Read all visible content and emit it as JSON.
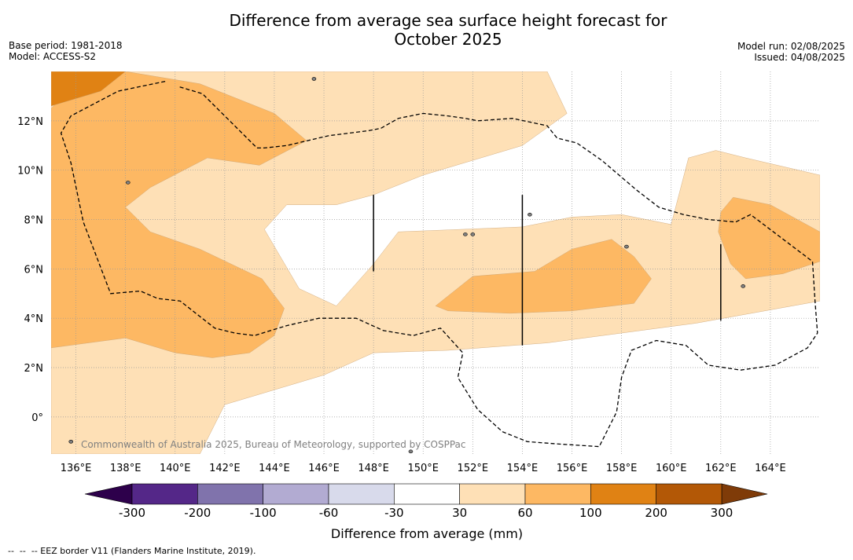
{
  "title_line1": "Difference from average sea surface height forecast for",
  "title_line2": "October 2025",
  "meta_left": {
    "base_period": "Base period: 1981-2018",
    "model": "Model: ACCESS-S2"
  },
  "meta_right": {
    "model_run": "Model run: 02/08/2025",
    "issued": "Issued: 04/08/2025"
  },
  "copyright": "Commonwealth of Australia 2025, Bureau of Meteorology, supported by COSPPac",
  "footnote": "--  --  -- EEZ border V11 (Flanders Marine Institute, 2019).",
  "chart_data": {
    "type": "heatmap",
    "xlim": [
      135,
      166
    ],
    "ylim": [
      -1.5,
      14
    ],
    "x_ticks": [
      {
        "value": 136,
        "label": "136°E"
      },
      {
        "value": 138,
        "label": "138°E"
      },
      {
        "value": 140,
        "label": "140°E"
      },
      {
        "value": 142,
        "label": "142°E"
      },
      {
        "value": 144,
        "label": "144°E"
      },
      {
        "value": 146,
        "label": "146°E"
      },
      {
        "value": 148,
        "label": "148°E"
      },
      {
        "value": 150,
        "label": "150°E"
      },
      {
        "value": 152,
        "label": "152°E"
      },
      {
        "value": 154,
        "label": "154°E"
      },
      {
        "value": 156,
        "label": "156°E"
      },
      {
        "value": 158,
        "label": "158°E"
      },
      {
        "value": 160,
        "label": "160°E"
      },
      {
        "value": 162,
        "label": "162°E"
      },
      {
        "value": 164,
        "label": "164°E"
      }
    ],
    "y_ticks": [
      {
        "value": 0,
        "label": "0°"
      },
      {
        "value": 2,
        "label": "2°N"
      },
      {
        "value": 4,
        "label": "4°N"
      },
      {
        "value": 6,
        "label": "6°N"
      },
      {
        "value": 8,
        "label": "8°N"
      },
      {
        "value": 10,
        "label": "10°N"
      },
      {
        "value": 12,
        "label": "12°N"
      }
    ],
    "grid": true,
    "colorbar": {
      "label": "Difference from average (mm)",
      "tick_labels": [
        "-300",
        "-200",
        "-100",
        "-60",
        "-30",
        "30",
        "60",
        "100",
        "200",
        "300"
      ],
      "colors": [
        "#542788",
        "#8073ac",
        "#b2abd2",
        "#d8daeb",
        "#ffffff",
        "#fee0b6",
        "#fdb863",
        "#e08214",
        "#b35806"
      ],
      "extend_low_color": "#2d004b",
      "extend_high_color": "#7f3b08"
    },
    "regions": [
      {
        "level": "30 to 60",
        "color": "#fee0b6",
        "points": [
          [
            135,
            14
          ],
          [
            155,
            14
          ],
          [
            155.8,
            12.3
          ],
          [
            154,
            11
          ],
          [
            150,
            9.8
          ],
          [
            148,
            9.0
          ],
          [
            146.5,
            8.6
          ],
          [
            144.5,
            8.6
          ],
          [
            143.6,
            7.6
          ],
          [
            145,
            5.2
          ],
          [
            146.5,
            4.5
          ],
          [
            148,
            6.2
          ],
          [
            149,
            7.5
          ],
          [
            151.5,
            7.6
          ],
          [
            154,
            7.7
          ],
          [
            156,
            8.1
          ],
          [
            158,
            8.2
          ],
          [
            160,
            7.8
          ],
          [
            160.7,
            10.5
          ],
          [
            161.8,
            10.8
          ],
          [
            163,
            10.5
          ],
          [
            166,
            9.8
          ],
          [
            166,
            4.7
          ],
          [
            161,
            3.8
          ],
          [
            155,
            3.0
          ],
          [
            151,
            2.7
          ],
          [
            148,
            2.6
          ],
          [
            146,
            1.7
          ],
          [
            142,
            0.5
          ],
          [
            141,
            -1.5
          ],
          [
            135,
            -1.5
          ]
        ]
      },
      {
        "level": "60 to 100",
        "color": "#fdb863",
        "points": [
          [
            135,
            12.5
          ],
          [
            135,
            2.8
          ],
          [
            138,
            3.2
          ],
          [
            140,
            2.6
          ],
          [
            141.5,
            2.4
          ],
          [
            143,
            2.6
          ],
          [
            144,
            3.3
          ],
          [
            144.4,
            4.4
          ],
          [
            143.5,
            5.6
          ],
          [
            141,
            6.8
          ],
          [
            139,
            7.5
          ],
          [
            138,
            8.5
          ],
          [
            139,
            9.3
          ],
          [
            141.3,
            10.5
          ],
          [
            143.4,
            10.2
          ],
          [
            145.3,
            11.2
          ],
          [
            144,
            12.3
          ],
          [
            141,
            13.5
          ],
          [
            138,
            14
          ],
          [
            136.5,
            14
          ]
        ]
      },
      {
        "level": "60 to 100",
        "color": "#fdb863",
        "points": [
          [
            150.5,
            4.5
          ],
          [
            152,
            5.7
          ],
          [
            154.5,
            5.9
          ],
          [
            156,
            6.8
          ],
          [
            157.6,
            7.2
          ],
          [
            158.5,
            6.5
          ],
          [
            159.2,
            5.6
          ],
          [
            158.5,
            4.6
          ],
          [
            156,
            4.3
          ],
          [
            153.5,
            4.2
          ],
          [
            151,
            4.3
          ]
        ]
      },
      {
        "level": "60 to 100",
        "color": "#fdb863",
        "points": [
          [
            162,
            8.3
          ],
          [
            162.5,
            8.9
          ],
          [
            164,
            8.6
          ],
          [
            166,
            7.5
          ],
          [
            166,
            6.3
          ],
          [
            164.5,
            5.8
          ],
          [
            163,
            5.6
          ],
          [
            162.4,
            6.2
          ],
          [
            161.9,
            7.5
          ]
        ]
      },
      {
        "level": "100 to 200",
        "color": "#e08214",
        "points": [
          [
            135,
            14
          ],
          [
            138,
            14
          ],
          [
            137,
            13.2
          ],
          [
            135,
            12.6
          ]
        ]
      }
    ]
  }
}
